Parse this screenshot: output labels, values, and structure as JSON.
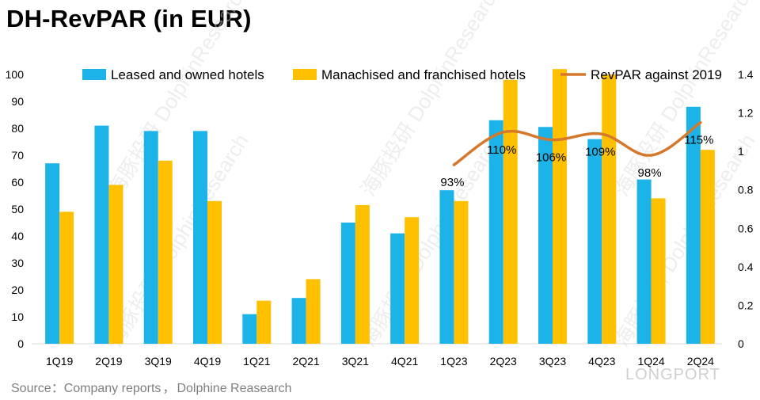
{
  "title": "DH-RevPAR (in EUR)",
  "source": {
    "prefix": "Source：",
    "part1": "Company reports",
    "sep": "，",
    "part2": "Dolphine Reasearch"
  },
  "watermark": "海豚投研 DolphinResearch",
  "logo": "LONGPORT",
  "colors": {
    "leased": "#1cb4e8",
    "managed": "#ffc000",
    "line": "#d6782b"
  },
  "chart_data": {
    "type": "bar",
    "categories": [
      "1Q19",
      "2Q19",
      "3Q19",
      "4Q19",
      "1Q21",
      "2Q21",
      "3Q21",
      "4Q21",
      "1Q23",
      "2Q23",
      "3Q23",
      "4Q23",
      "1Q24",
      "2Q24"
    ],
    "series": [
      {
        "name": "Leased and owned hotels",
        "type": "bar",
        "axis": "left",
        "values": [
          67,
          81,
          79,
          79,
          11,
          17,
          45,
          41,
          57,
          83,
          80.5,
          76,
          61,
          88
        ]
      },
      {
        "name": "Manachised and franchised hotels",
        "type": "bar",
        "axis": "left",
        "values": [
          49,
          59,
          68,
          53,
          16,
          24,
          51.5,
          47,
          53,
          98,
          102,
          100,
          54,
          72
        ]
      },
      {
        "name": "RevPAR against 2019",
        "type": "line",
        "axis": "right",
        "values": [
          null,
          null,
          null,
          null,
          null,
          null,
          null,
          null,
          0.93,
          1.1,
          1.06,
          1.09,
          0.98,
          1.15
        ],
        "labels": [
          "",
          "",
          "",
          "",
          "",
          "",
          "",
          "",
          "93%",
          "110%",
          "106%",
          "109%",
          "98%",
          "115%"
        ]
      }
    ],
    "y_left": {
      "min": 0,
      "max": 100,
      "ticks": [
        "0",
        "10",
        "20",
        "30",
        "40",
        "50",
        "60",
        "70",
        "80",
        "90",
        "100"
      ]
    },
    "y_right": {
      "min": 0,
      "max": 1.4,
      "ticks": [
        "0",
        "0.2",
        "0.4",
        "0.6",
        "0.8",
        "1",
        "1.2",
        "1.4"
      ]
    },
    "grid": false,
    "legend": "top"
  }
}
